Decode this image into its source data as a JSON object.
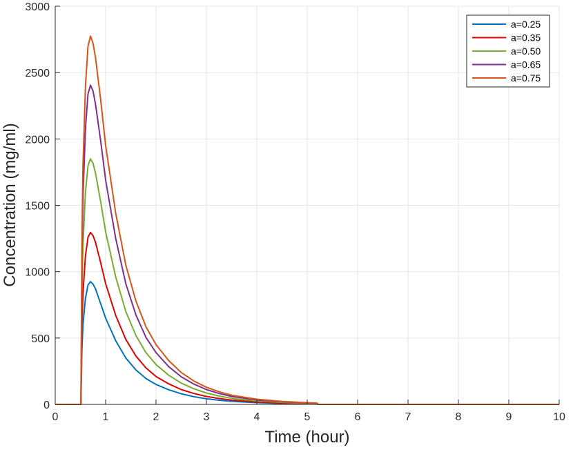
{
  "chart_data": {
    "type": "line",
    "xlabel": "Time (hour)",
    "ylabel": "Concentration (mg/ml)",
    "xlim": [
      0,
      10
    ],
    "ylim": [
      0,
      3000
    ],
    "x_ticks": [
      0,
      1,
      2,
      3,
      4,
      5,
      6,
      7,
      8,
      9,
      10
    ],
    "y_ticks": [
      0,
      500,
      1000,
      1500,
      2000,
      2500,
      3000
    ],
    "grid": true,
    "legend_position": "top-right",
    "x": [
      0,
      0.5,
      0.51,
      0.53,
      0.55,
      0.6,
      0.65,
      0.7,
      0.75,
      0.8,
      0.9,
      1.0,
      1.2,
      1.4,
      1.6,
      1.8,
      2.0,
      2.25,
      2.5,
      2.75,
      3.0,
      3.25,
      3.5,
      4.0,
      4.5,
      5.0,
      5.2,
      5.21,
      6,
      7,
      8,
      9,
      10
    ],
    "series": [
      {
        "name": "a=0.25",
        "color": "#0072BD",
        "values": [
          0,
          0,
          0,
          420,
          600,
          800,
          900,
          925,
          905,
          870,
          760,
          650,
          480,
          350,
          260,
          195,
          150,
          110,
          80,
          58,
          42,
          31,
          23,
          13,
          7,
          4,
          3,
          0,
          0,
          0,
          0,
          0,
          0
        ]
      },
      {
        "name": "a=0.35",
        "color": "#E00000",
        "values": [
          0,
          0,
          0,
          590,
          840,
          1120,
          1260,
          1295,
          1270,
          1220,
          1070,
          910,
          670,
          490,
          365,
          275,
          210,
          155,
          112,
          82,
          60,
          44,
          32,
          18,
          10,
          6,
          4,
          0,
          0,
          0,
          0,
          0,
          0
        ]
      },
      {
        "name": "a=0.50",
        "color": "#77AC30",
        "values": [
          0,
          0,
          0,
          840,
          1200,
          1600,
          1800,
          1850,
          1815,
          1740,
          1530,
          1300,
          960,
          700,
          520,
          390,
          300,
          220,
          160,
          118,
          86,
          63,
          46,
          26,
          15,
          8,
          6,
          0,
          0,
          0,
          0,
          0,
          0
        ]
      },
      {
        "name": "a=0.65",
        "color": "#7E2F8E",
        "values": [
          0,
          0,
          0,
          1090,
          1560,
          2080,
          2340,
          2405,
          2360,
          2260,
          1990,
          1690,
          1250,
          910,
          675,
          505,
          390,
          285,
          208,
          153,
          112,
          82,
          60,
          34,
          19,
          11,
          8,
          0,
          0,
          0,
          0,
          0,
          0
        ]
      },
      {
        "name": "a=0.75",
        "color": "#D95319",
        "values": [
          0,
          0,
          0,
          1260,
          1800,
          2400,
          2700,
          2775,
          2720,
          2610,
          2300,
          1950,
          1440,
          1050,
          780,
          585,
          450,
          330,
          240,
          176,
          129,
          95,
          69,
          39,
          22,
          13,
          9,
          0,
          0,
          0,
          0,
          0,
          0
        ]
      }
    ]
  }
}
